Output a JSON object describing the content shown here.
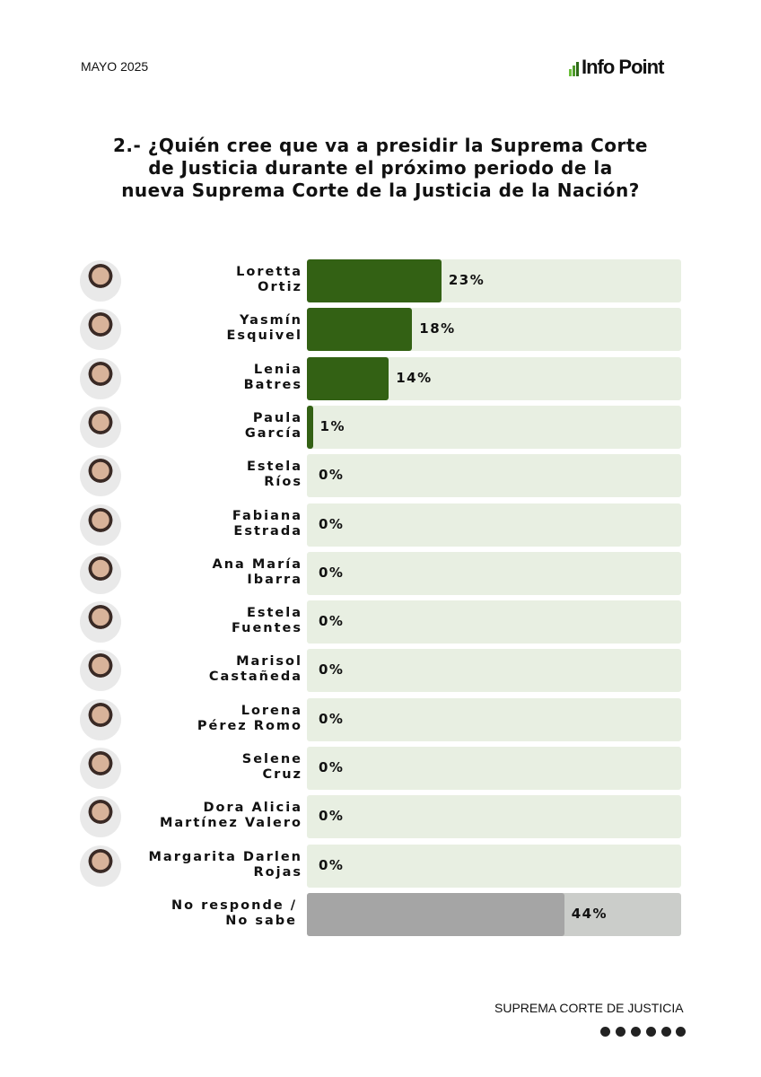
{
  "header": {
    "date": "MAYO 2025",
    "brand": "Info Point"
  },
  "footer": {
    "text": "SUPREMA CORTE DE JUSTICIA"
  },
  "chart_data": {
    "type": "bar",
    "orientation": "horizontal",
    "title": "2.- ¿Quién cree que va a presidir la Suprema Corte\nde Justicia durante el próximo periodo de la\nnueva Suprema Corte de la Justicia de la Nación?",
    "categories": [
      "Loretta\nOrtiz",
      "Yasmín\nEsquivel",
      "Lenia\nBatres",
      "Paula\nGarcía",
      "Estela\nRíos",
      "Fabiana\nEstrada",
      "Ana María\nIbarra",
      "Estela\nFuentes",
      "Marisol\nCastañeda",
      "Lorena\nPérez Romo",
      "Selene\nCruz",
      "Dora Alicia\nMartínez Valero",
      "Margarita Darlen\nRojas",
      "No responde /\nNo sabe"
    ],
    "values": [
      23,
      18,
      14,
      1,
      0,
      0,
      0,
      0,
      0,
      0,
      0,
      0,
      0,
      44
    ],
    "value_labels": [
      "23%",
      "18%",
      "14%",
      "1%",
      "0%",
      "0%",
      "0%",
      "0%",
      "0%",
      "0%",
      "0%",
      "0%",
      "0%",
      "44%"
    ],
    "colors": [
      "#336114",
      "#336114",
      "#336114",
      "#336114",
      "#336114",
      "#336114",
      "#336114",
      "#336114",
      "#336114",
      "#336114",
      "#336114",
      "#336114",
      "#336114",
      "#a5a5a5"
    ],
    "track_colors": [
      "#e8efe2",
      "#e8efe2",
      "#e8efe2",
      "#e8efe2",
      "#e8efe2",
      "#e8efe2",
      "#e8efe2",
      "#e8efe2",
      "#e8efe2",
      "#e8efe2",
      "#e8efe2",
      "#e8efe2",
      "#e8efe2",
      "#cbcdca"
    ],
    "xlim": [
      0,
      64
    ]
  }
}
